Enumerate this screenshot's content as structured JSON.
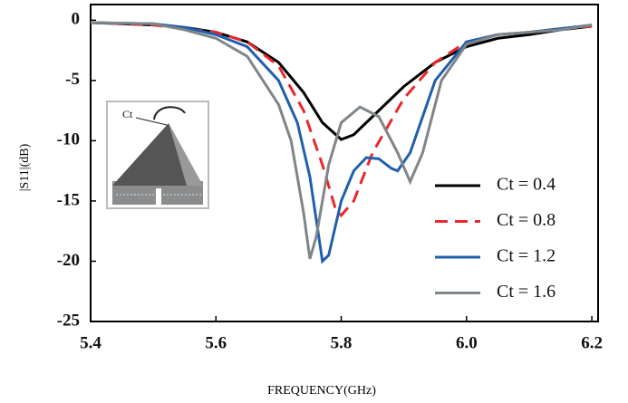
{
  "chart_data": {
    "type": "line",
    "x_label": "FREQUENCY(GHz)",
    "y_label": "|S11|(dB)",
    "inset_label": "Ct",
    "xlim": [
      5.4,
      6.21
    ],
    "ylim": [
      -25,
      1.3
    ],
    "xticks": [
      5.4,
      5.6,
      5.8,
      {
        "value": 6.0,
        "label": "6.0"
      },
      6.2
    ],
    "yticks": [
      0,
      -5,
      -10,
      -15,
      -20,
      -25
    ],
    "legend": "lower-right",
    "series": [
      {
        "name": "Ct = 0.4",
        "color": "#000000",
        "dash": "solid",
        "x": [
          5.4,
          5.5,
          5.55,
          5.6,
          5.65,
          5.7,
          5.74,
          5.77,
          5.8,
          5.82,
          5.85,
          5.9,
          5.95,
          6.0,
          6.05,
          6.1,
          6.15,
          6.2
        ],
        "values": [
          -0.2,
          -0.4,
          -0.6,
          -1.0,
          -1.8,
          -3.5,
          -6,
          -8.5,
          -9.9,
          -9.5,
          -8.0,
          -5.5,
          -3.5,
          -2.2,
          -1.5,
          -1.2,
          -0.8,
          -0.5
        ]
      },
      {
        "name": "Ct = 0.8",
        "color": "#e8282b",
        "dash": "dashed",
        "x": [
          5.4,
          5.5,
          5.6,
          5.65,
          5.7,
          5.74,
          5.77,
          5.79,
          5.8,
          5.82,
          5.85,
          5.9,
          5.95,
          6.0,
          6.05,
          6.1,
          6.15,
          6.2
        ],
        "values": [
          -0.2,
          -0.4,
          -1.0,
          -1.8,
          -3.8,
          -7.5,
          -12,
          -15.5,
          -16.2,
          -15,
          -11,
          -6.5,
          -3.5,
          -1.8,
          -1.2,
          -1.0,
          -0.7,
          -0.5
        ]
      },
      {
        "name": "Ct = 1.2",
        "color": "#1f5fad",
        "dash": "solid",
        "x": [
          5.4,
          5.5,
          5.55,
          5.6,
          5.65,
          5.7,
          5.73,
          5.75,
          5.77,
          5.78,
          5.8,
          5.82,
          5.84,
          5.86,
          5.88,
          5.89,
          5.91,
          5.95,
          6.0,
          6.05,
          6.1,
          6.15,
          6.2
        ],
        "values": [
          -0.2,
          -0.3,
          -0.6,
          -1.2,
          -2.2,
          -5,
          -8.5,
          -13,
          -20,
          -19.5,
          -15,
          -12.5,
          -11.4,
          -11.5,
          -12.3,
          -12.5,
          -11,
          -5,
          -1.8,
          -1.2,
          -1.0,
          -0.7,
          -0.4
        ]
      },
      {
        "name": "Ct = 1.6",
        "color": "#7f8588",
        "dash": "solid",
        "x": [
          5.4,
          5.5,
          5.55,
          5.6,
          5.65,
          5.7,
          5.72,
          5.74,
          5.75,
          5.76,
          5.78,
          5.8,
          5.83,
          5.86,
          5.89,
          5.91,
          5.93,
          5.96,
          6.0,
          6.05,
          6.1,
          6.15,
          6.2
        ],
        "values": [
          -0.2,
          -0.3,
          -0.8,
          -1.5,
          -3,
          -7,
          -10,
          -16,
          -19.8,
          -18,
          -12,
          -8.5,
          -7.2,
          -8.0,
          -11,
          -13.4,
          -11,
          -5,
          -2,
          -1.2,
          -1.0,
          -0.8,
          -0.4
        ]
      }
    ]
  }
}
